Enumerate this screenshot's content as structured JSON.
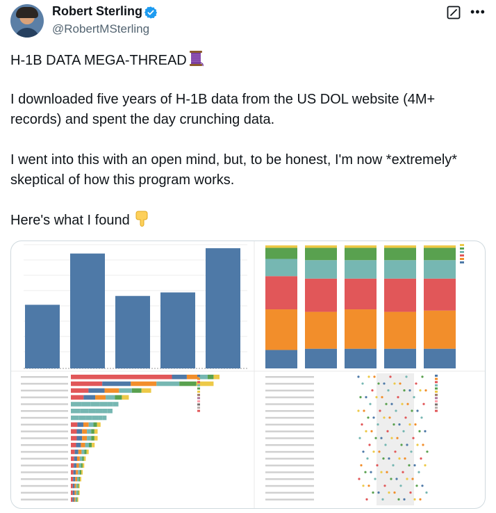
{
  "author": {
    "name": "Robert Sterling",
    "handle": "@RobertMSterling",
    "verified": true,
    "avatar_icon": "avatar-illustration"
  },
  "tweet": {
    "title_line": "H-1B DATA MEGA-THREAD",
    "paragraph_1": "I downloaded five years of H-1B data from the US DOL website (4M+ records) and spent the day crunching data.",
    "paragraph_2": "I went into this with an open mind, but, to be honest, I'm now *extremely* skeptical of how this program works.",
    "paragraph_3": "Here's what I found",
    "emoji_1": "spool-of-thread-icon",
    "emoji_2": "pointing-down-icon"
  },
  "icons": {
    "verified": "verified-badge-icon",
    "grok": "grok-icon",
    "more": "more-options-icon"
  },
  "colors": {
    "verified_blue": "#1d9bf0",
    "bar_blue": "#4e79a7",
    "orange": "#f28e2b",
    "red": "#e15759",
    "teal": "#76b7b2",
    "green": "#59a14f",
    "yellow": "#edc948"
  },
  "chart_data": [
    {
      "type": "bar",
      "values": [
        360000,
        650000,
        410000,
        430000,
        680000
      ]
    },
    {
      "type": "bar",
      "stacked": true,
      "percent": true,
      "series": [
        {
          "values": [
            15,
            16,
            16,
            16,
            16
          ]
        },
        {
          "values": [
            33,
            30,
            32,
            30,
            31
          ]
        },
        {
          "values": [
            27,
            27,
            25,
            27,
            26
          ]
        },
        {
          "values": [
            14,
            15,
            15,
            15,
            15
          ]
        },
        {
          "values": [
            9,
            10,
            10,
            10,
            10
          ]
        },
        {
          "values": [
            2,
            2,
            2,
            2,
            2
          ]
        }
      ]
    },
    {
      "type": "bar",
      "stacked": true,
      "orientation": "horizontal",
      "row_totals": [
        100,
        96,
        54,
        39,
        32,
        28,
        24,
        20,
        18,
        18,
        16,
        12,
        10,
        9,
        8,
        7,
        6,
        6,
        5
      ]
    },
    {
      "type": "scatter",
      "rows": 19
    }
  ]
}
